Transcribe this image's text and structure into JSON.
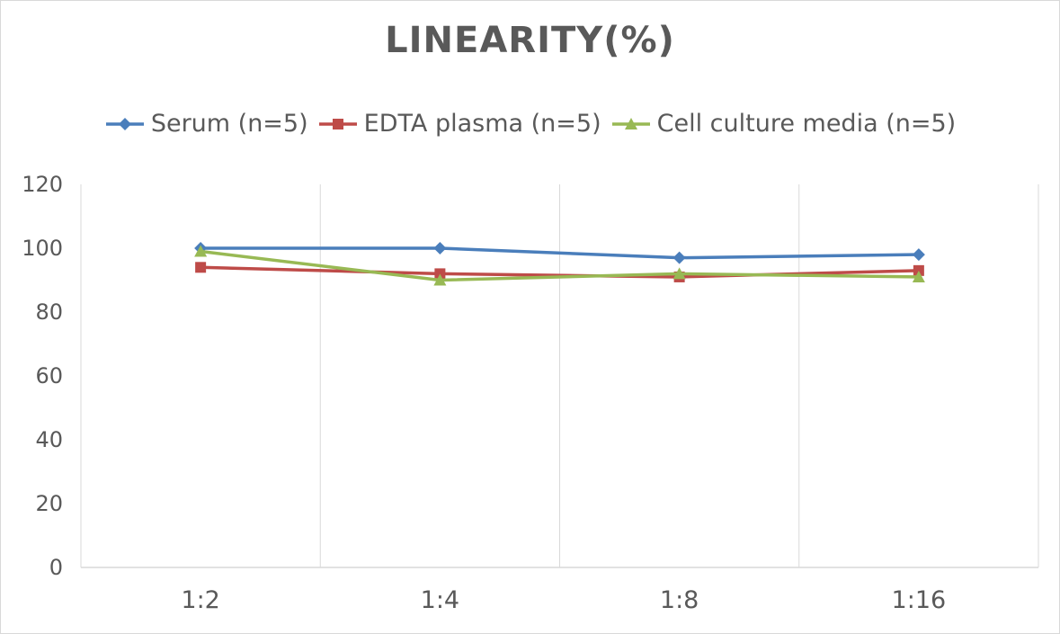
{
  "chart_data": {
    "type": "line",
    "title": "LINEARITY(%)",
    "categories": [
      "1:2",
      "1:4",
      "1:8",
      "1:16"
    ],
    "series": [
      {
        "name": "Serum (n=5)",
        "values": [
          100,
          100,
          97,
          98
        ],
        "color": "#4a7ebb",
        "marker": "diamond"
      },
      {
        "name": "EDTA plasma (n=5)",
        "values": [
          94,
          92,
          91,
          93
        ],
        "color": "#be4b48",
        "marker": "square"
      },
      {
        "name": "Cell culture media (n=5)",
        "values": [
          99,
          90,
          92,
          91
        ],
        "color": "#98b954",
        "marker": "triangle"
      }
    ],
    "ylim": [
      0,
      120
    ],
    "yticks": [
      0,
      20,
      40,
      60,
      80,
      100,
      120
    ],
    "xlabel": "",
    "ylabel": "",
    "grid": "vertical",
    "legend": "top"
  }
}
